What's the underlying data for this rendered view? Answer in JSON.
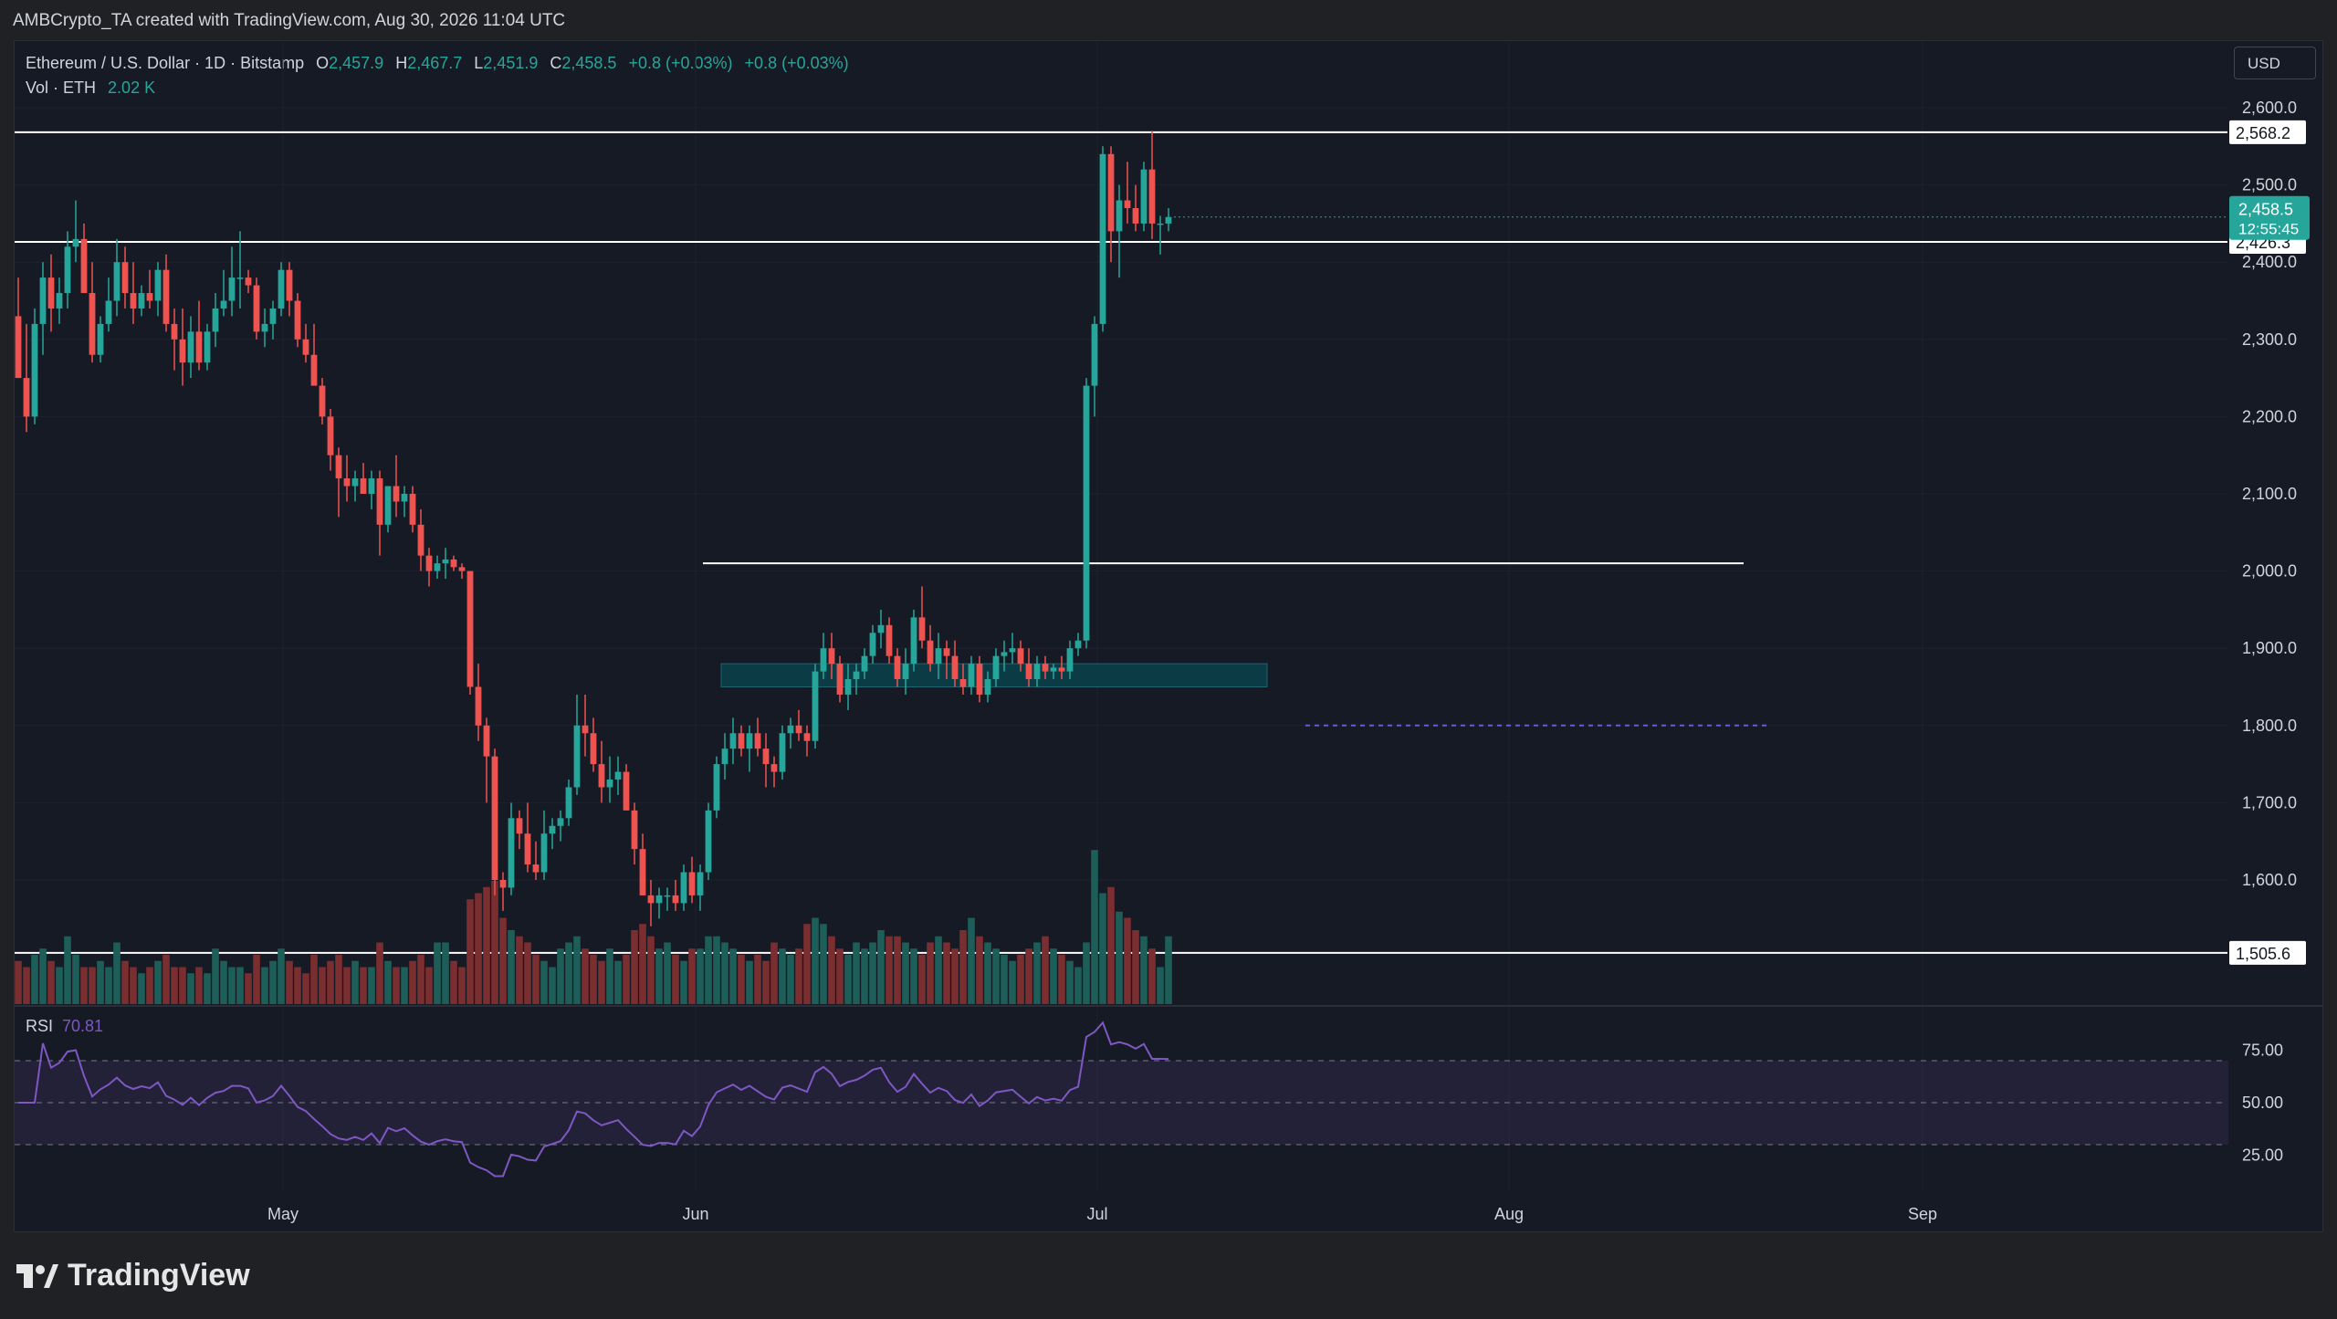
{
  "header": {
    "attribution": "AMBCrypto_TA created with TradingView.com, Aug 30, 2026 11:04 UTC"
  },
  "legend": {
    "symbol": "Ethereum / U.S. Dollar · 1D · Bitstamp",
    "o_label": "O",
    "o_value": "2,457.9",
    "h_label": "H",
    "h_value": "2,467.7",
    "l_label": "L",
    "l_value": "2,451.9",
    "c_label": "C",
    "c_value": "2,458.5",
    "change": "+0.8 (+0.03%)",
    "change2": "+0.8 (+0.03%)",
    "vol_label": "Vol · ETH",
    "vol_value": "2.02 K"
  },
  "currency_button": "USD",
  "brand": "TradingView",
  "colors": {
    "up": "#26a69a",
    "down": "#ef5350",
    "rsi": "#7e57c2",
    "zone": "#0b3b44",
    "level": "#ffffff",
    "background": "#161a25",
    "price_badge": "#26a69a"
  },
  "chart_data": {
    "type": "candlestick",
    "symbol": "ETH/USD",
    "interval": "1D",
    "x_axis": {
      "ticks": [
        "May",
        "Jun",
        "Jul",
        "Aug",
        "Sep"
      ]
    },
    "y_axis": {
      "ticks": [
        "2,600.0",
        "2,500.0",
        "2,400.0",
        "2,300.0",
        "2,200.0",
        "2,100.0",
        "2,000.0",
        "1,900.0",
        "1,800.0",
        "1,700.0",
        "1,600.0"
      ],
      "range": [
        1500,
        2630
      ]
    },
    "horizontal_levels": [
      {
        "value": 2568.2,
        "label": "2,568.2",
        "style": "solid"
      },
      {
        "value": 2426.3,
        "label": "2,426.3",
        "style": "solid"
      },
      {
        "value": 2010,
        "label": "",
        "style": "solid-ray"
      },
      {
        "value": 1800,
        "label": "",
        "style": "dashed"
      },
      {
        "value": 1505.6,
        "label": "1,505.6",
        "style": "solid"
      }
    ],
    "zone": {
      "from": 1850,
      "to": 1880
    },
    "last_price": {
      "value": 2458.5,
      "label": "2,458.5",
      "countdown": "12:55:45"
    },
    "candles_ohlc": [
      [
        2330,
        2380,
        2310,
        2250
      ],
      [
        2250,
        2320,
        2180,
        2200
      ],
      [
        2200,
        2340,
        2190,
        2320
      ],
      [
        2320,
        2400,
        2280,
        2380
      ],
      [
        2380,
        2410,
        2310,
        2340
      ],
      [
        2340,
        2380,
        2320,
        2360
      ],
      [
        2360,
        2440,
        2340,
        2420
      ],
      [
        2420,
        2480,
        2400,
        2430
      ],
      [
        2430,
        2450,
        2360,
        2360
      ],
      [
        2360,
        2400,
        2270,
        2280
      ],
      [
        2280,
        2330,
        2270,
        2320
      ],
      [
        2320,
        2380,
        2310,
        2350
      ],
      [
        2350,
        2430,
        2330,
        2400
      ],
      [
        2400,
        2420,
        2340,
        2360
      ],
      [
        2360,
        2400,
        2320,
        2340
      ],
      [
        2340,
        2370,
        2330,
        2360
      ],
      [
        2360,
        2390,
        2340,
        2350
      ],
      [
        2350,
        2400,
        2330,
        2390
      ],
      [
        2390,
        2410,
        2310,
        2320
      ],
      [
        2320,
        2340,
        2260,
        2300
      ],
      [
        2300,
        2340,
        2240,
        2270
      ],
      [
        2270,
        2330,
        2250,
        2310
      ],
      [
        2310,
        2350,
        2260,
        2270
      ],
      [
        2270,
        2320,
        2260,
        2310
      ],
      [
        2310,
        2360,
        2290,
        2340
      ],
      [
        2340,
        2390,
        2330,
        2350
      ],
      [
        2350,
        2420,
        2330,
        2380
      ],
      [
        2380,
        2440,
        2340,
        2380
      ],
      [
        2380,
        2390,
        2360,
        2370
      ],
      [
        2370,
        2380,
        2300,
        2310
      ],
      [
        2310,
        2340,
        2290,
        2320
      ],
      [
        2320,
        2350,
        2300,
        2340
      ],
      [
        2340,
        2400,
        2330,
        2390
      ],
      [
        2390,
        2400,
        2330,
        2350
      ],
      [
        2350,
        2360,
        2290,
        2300
      ],
      [
        2300,
        2320,
        2270,
        2280
      ],
      [
        2280,
        2320,
        2260,
        2240
      ],
      [
        2240,
        2250,
        2190,
        2200
      ],
      [
        2200,
        2210,
        2130,
        2150
      ],
      [
        2150,
        2160,
        2070,
        2120
      ],
      [
        2120,
        2150,
        2090,
        2110
      ],
      [
        2110,
        2130,
        2090,
        2120
      ],
      [
        2120,
        2140,
        2100,
        2100
      ],
      [
        2100,
        2130,
        2080,
        2120
      ],
      [
        2120,
        2130,
        2020,
        2060
      ],
      [
        2060,
        2110,
        2050,
        2110
      ],
      [
        2110,
        2150,
        2070,
        2090
      ],
      [
        2090,
        2110,
        2070,
        2100
      ],
      [
        2100,
        2110,
        2050,
        2060
      ],
      [
        2060,
        2080,
        2000,
        2020
      ],
      [
        2020,
        2030,
        1980,
        2000
      ],
      [
        2000,
        2020,
        1990,
        2010
      ],
      [
        2010,
        2030,
        1990,
        2015
      ],
      [
        2015,
        2020,
        2000,
        2005
      ],
      [
        2005,
        2010,
        1990,
        2000
      ],
      [
        2000,
        2000,
        1840,
        1850
      ],
      [
        1850,
        1880,
        1780,
        1800
      ],
      [
        1800,
        1810,
        1700,
        1760
      ],
      [
        1760,
        1770,
        1580,
        1600
      ],
      [
        1600,
        1610,
        1560,
        1590
      ],
      [
        1590,
        1700,
        1580,
        1680
      ],
      [
        1680,
        1690,
        1640,
        1660
      ],
      [
        1660,
        1700,
        1610,
        1620
      ],
      [
        1620,
        1650,
        1600,
        1610
      ],
      [
        1610,
        1690,
        1600,
        1660
      ],
      [
        1660,
        1680,
        1640,
        1670
      ],
      [
        1670,
        1690,
        1650,
        1680
      ],
      [
        1680,
        1730,
        1670,
        1720
      ],
      [
        1720,
        1840,
        1710,
        1800
      ],
      [
        1800,
        1840,
        1760,
        1790
      ],
      [
        1790,
        1810,
        1740,
        1750
      ],
      [
        1750,
        1780,
        1700,
        1720
      ],
      [
        1720,
        1760,
        1700,
        1730
      ],
      [
        1730,
        1760,
        1710,
        1740
      ],
      [
        1740,
        1750,
        1690,
        1690
      ],
      [
        1690,
        1700,
        1620,
        1640
      ],
      [
        1640,
        1660,
        1580,
        1580
      ],
      [
        1580,
        1600,
        1540,
        1570
      ],
      [
        1570,
        1590,
        1550,
        1580
      ],
      [
        1580,
        1590,
        1560,
        1580
      ],
      [
        1580,
        1600,
        1560,
        1570
      ],
      [
        1570,
        1620,
        1560,
        1610
      ],
      [
        1610,
        1630,
        1570,
        1580
      ],
      [
        1580,
        1620,
        1560,
        1610
      ],
      [
        1610,
        1700,
        1600,
        1690
      ],
      [
        1690,
        1760,
        1680,
        1750
      ],
      [
        1750,
        1790,
        1730,
        1770
      ],
      [
        1770,
        1810,
        1750,
        1790
      ],
      [
        1790,
        1800,
        1760,
        1770
      ],
      [
        1770,
        1800,
        1740,
        1790
      ],
      [
        1790,
        1810,
        1760,
        1770
      ],
      [
        1770,
        1790,
        1720,
        1750
      ],
      [
        1750,
        1760,
        1720,
        1740
      ],
      [
        1740,
        1800,
        1730,
        1790
      ],
      [
        1790,
        1810,
        1770,
        1800
      ],
      [
        1800,
        1820,
        1780,
        1790
      ],
      [
        1790,
        1800,
        1760,
        1780
      ],
      [
        1780,
        1880,
        1770,
        1870
      ],
      [
        1870,
        1920,
        1860,
        1900
      ],
      [
        1900,
        1920,
        1860,
        1880
      ],
      [
        1880,
        1890,
        1830,
        1840
      ],
      [
        1840,
        1880,
        1820,
        1860
      ],
      [
        1860,
        1880,
        1840,
        1870
      ],
      [
        1870,
        1900,
        1860,
        1890
      ],
      [
        1890,
        1930,
        1880,
        1920
      ],
      [
        1920,
        1950,
        1900,
        1930
      ],
      [
        1930,
        1940,
        1880,
        1890
      ],
      [
        1890,
        1900,
        1850,
        1860
      ],
      [
        1860,
        1900,
        1840,
        1880
      ],
      [
        1880,
        1950,
        1870,
        1940
      ],
      [
        1940,
        1980,
        1900,
        1910
      ],
      [
        1910,
        1930,
        1870,
        1880
      ],
      [
        1880,
        1920,
        1860,
        1900
      ],
      [
        1900,
        1910,
        1860,
        1890
      ],
      [
        1890,
        1910,
        1850,
        1860
      ],
      [
        1860,
        1880,
        1840,
        1850
      ],
      [
        1850,
        1890,
        1840,
        1880
      ],
      [
        1880,
        1890,
        1830,
        1840
      ],
      [
        1840,
        1870,
        1830,
        1860
      ],
      [
        1860,
        1900,
        1850,
        1890
      ],
      [
        1890,
        1910,
        1870,
        1895
      ],
      [
        1895,
        1920,
        1880,
        1900
      ],
      [
        1900,
        1910,
        1870,
        1880
      ],
      [
        1880,
        1900,
        1850,
        1860
      ],
      [
        1860,
        1890,
        1850,
        1880
      ],
      [
        1880,
        1890,
        1860,
        1870
      ],
      [
        1870,
        1880,
        1860,
        1875
      ],
      [
        1875,
        1890,
        1860,
        1870
      ],
      [
        1870,
        1910,
        1860,
        1900
      ],
      [
        1900,
        1920,
        1890,
        1910
      ],
      [
        1910,
        2250,
        1900,
        2240
      ],
      [
        2240,
        2330,
        2200,
        2320
      ],
      [
        2320,
        2550,
        2310,
        2540
      ],
      [
        2540,
        2550,
        2400,
        2440
      ],
      [
        2440,
        2500,
        2380,
        2480
      ],
      [
        2480,
        2530,
        2450,
        2470
      ],
      [
        2470,
        2500,
        2440,
        2450
      ],
      [
        2450,
        2530,
        2440,
        2520
      ],
      [
        2520,
        2570,
        2430,
        2450
      ],
      [
        2450,
        2460,
        2410,
        2450
      ],
      [
        2450,
        2470,
        2440,
        2458.5
      ]
    ],
    "volume": {
      "label": "Vol · ETH",
      "last": "2.02 K"
    },
    "rsi": {
      "label": "RSI",
      "value": "70.81",
      "ticks": [
        "75.00",
        "50.00",
        "25.00"
      ],
      "overbought": 70,
      "middle": 50,
      "oversold": 30
    }
  }
}
